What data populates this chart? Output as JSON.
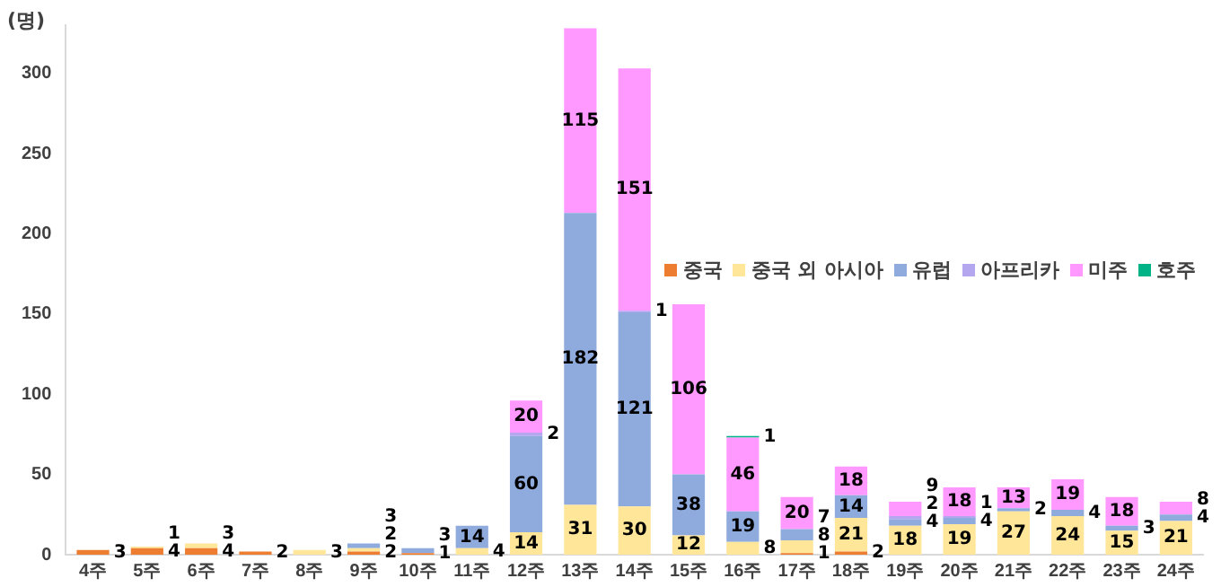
{
  "chart_data": {
    "type": "bar",
    "stacked": true,
    "ylabel": "(명)",
    "categories": [
      "4주",
      "5주",
      "6주",
      "7주",
      "8주",
      "9주",
      "10주",
      "11주",
      "12주",
      "13주",
      "14주",
      "15주",
      "16주",
      "17주",
      "18주",
      "19주",
      "20주",
      "21주",
      "22주",
      "23주",
      "24주"
    ],
    "series": [
      {
        "name": "중국",
        "color": "#ed7d31",
        "values": [
          3,
          4,
          4,
          2,
          null,
          2,
          1,
          null,
          null,
          null,
          null,
          null,
          null,
          1,
          2,
          null,
          null,
          null,
          null,
          null,
          null
        ]
      },
      {
        "name": "중국 외 아시아",
        "color": "#ffe699",
        "values": [
          null,
          1,
          3,
          null,
          3,
          2,
          null,
          4,
          14,
          31,
          30,
          12,
          8,
          8,
          21,
          18,
          19,
          27,
          24,
          15,
          21
        ]
      },
      {
        "name": "유럽",
        "color": "#8faadc",
        "values": [
          null,
          null,
          null,
          null,
          null,
          3,
          3,
          14,
          60,
          182,
          121,
          38,
          19,
          7,
          14,
          4,
          4,
          2,
          4,
          3,
          4
        ]
      },
      {
        "name": "아프리카",
        "color": "#b4a7f0",
        "values": [
          null,
          null,
          null,
          null,
          null,
          null,
          null,
          null,
          2,
          null,
          1,
          null,
          null,
          null,
          null,
          2,
          1,
          null,
          null,
          null,
          null
        ]
      },
      {
        "name": "미주",
        "color": "#ff99ff",
        "values": [
          null,
          null,
          null,
          null,
          null,
          null,
          null,
          null,
          20,
          115,
          151,
          106,
          46,
          20,
          18,
          9,
          18,
          13,
          19,
          18,
          8
        ]
      },
      {
        "name": "호주",
        "color": "#00b386",
        "values": [
          null,
          null,
          null,
          null,
          null,
          null,
          null,
          null,
          null,
          null,
          null,
          null,
          1,
          null,
          null,
          null,
          null,
          null,
          null,
          null,
          null
        ]
      }
    ],
    "ylim": [
      0,
      330
    ],
    "yticks": [
      0,
      50,
      100,
      150,
      200,
      250,
      300
    ],
    "grid": false,
    "legend": "right",
    "data_labels": true
  }
}
